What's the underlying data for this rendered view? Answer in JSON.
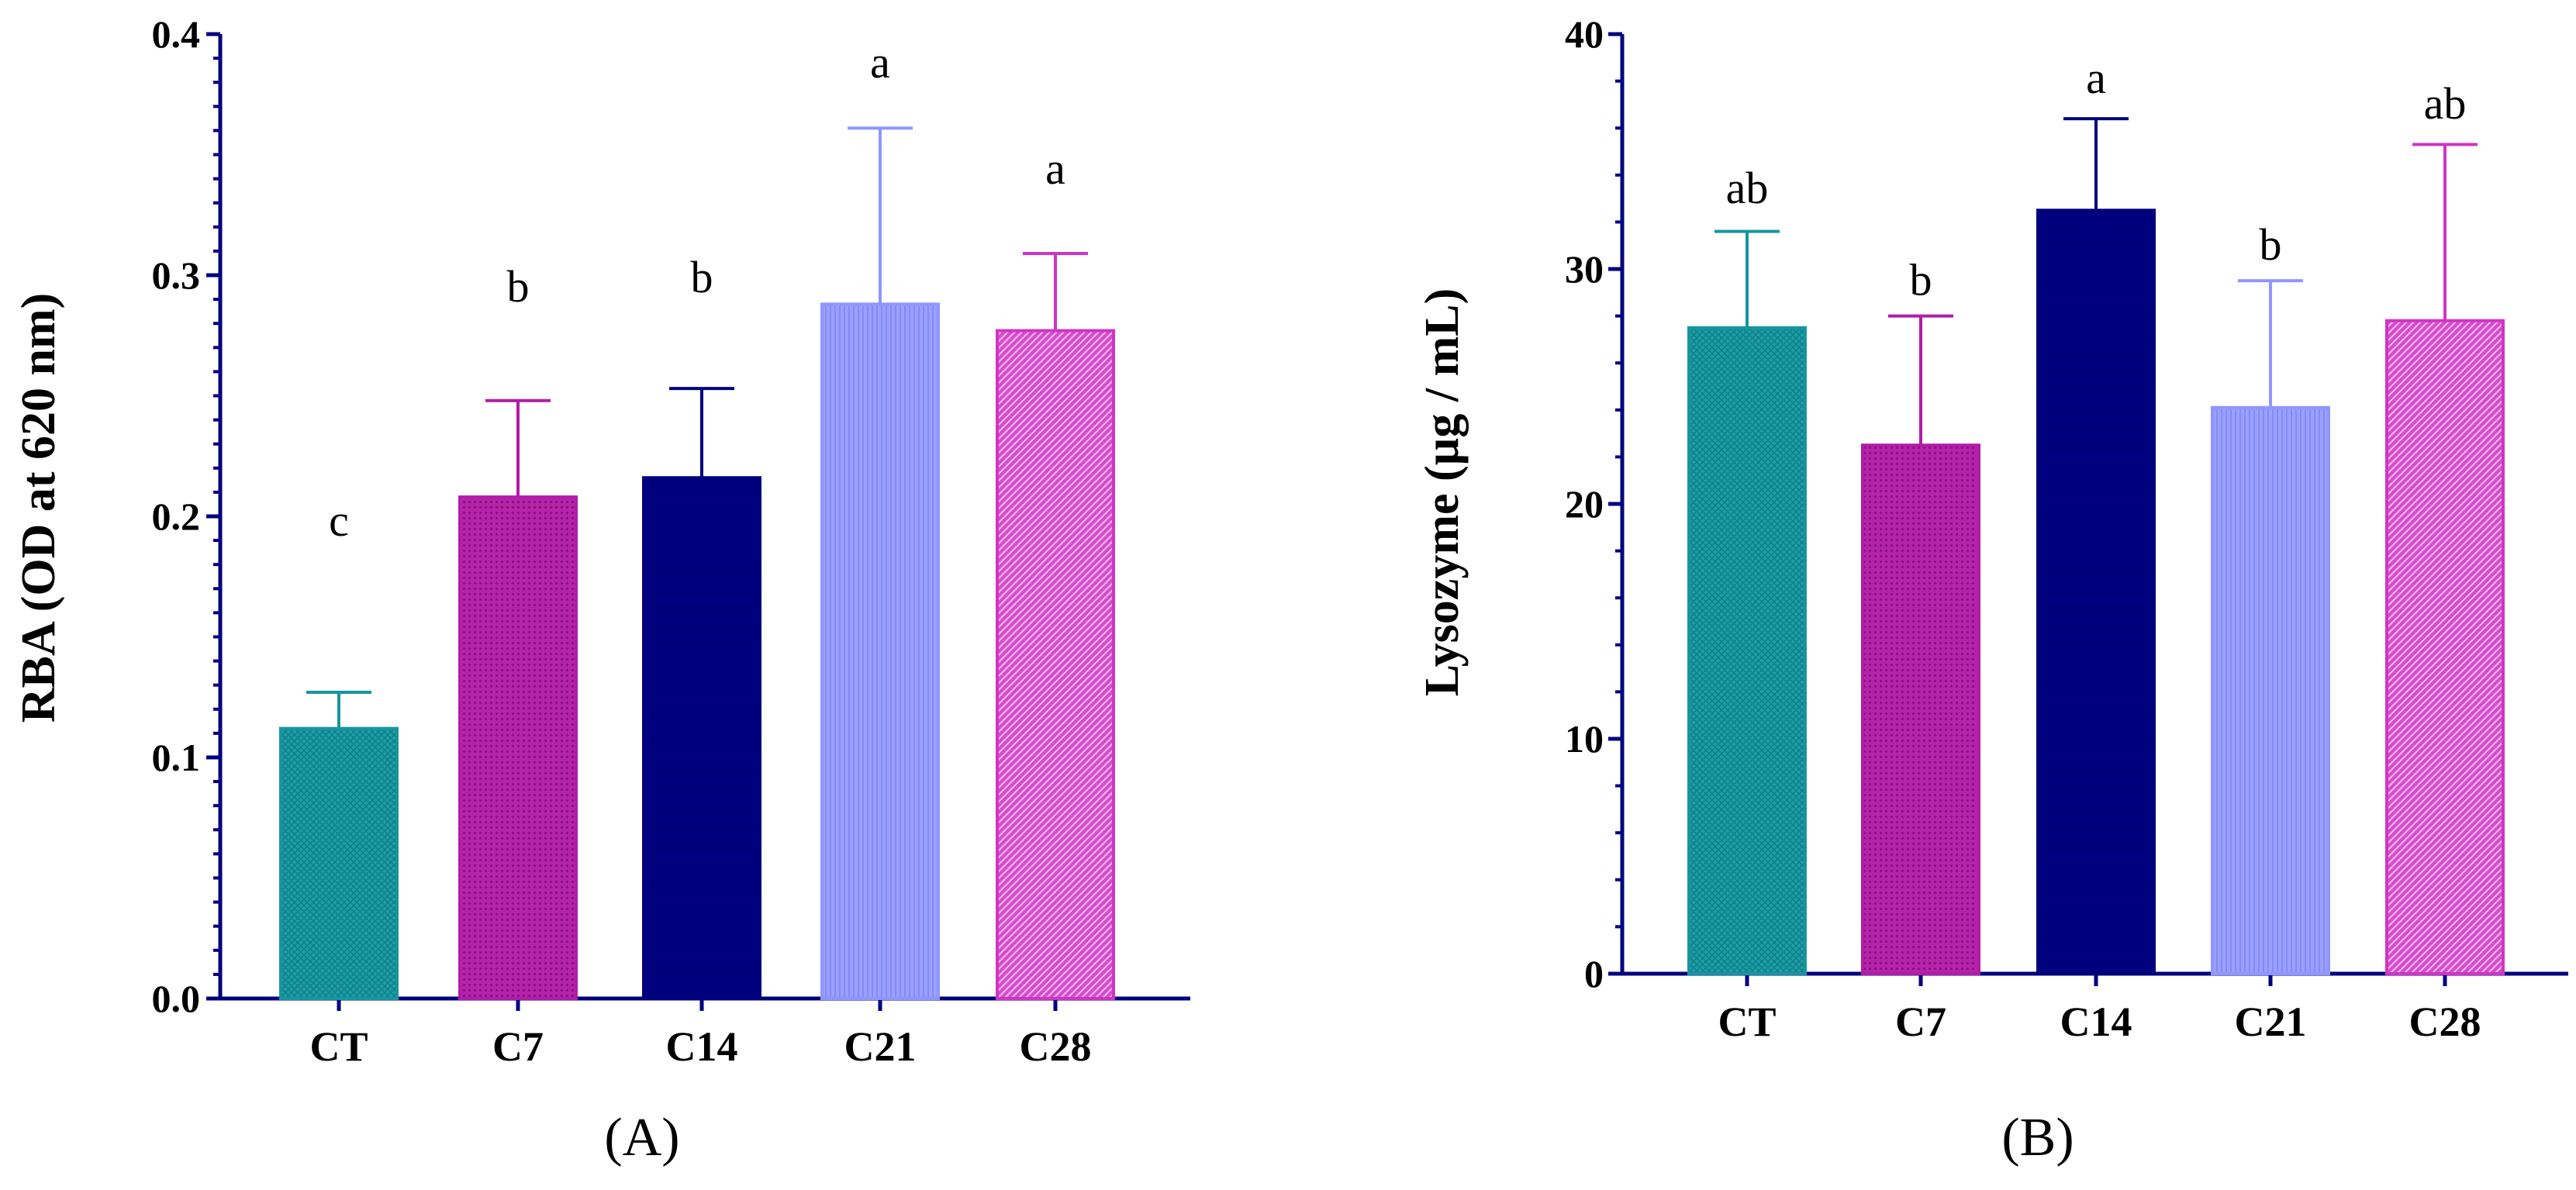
{
  "chart_data": [
    {
      "type": "bar",
      "panel_label": "(A)",
      "ylabel": "RBA (OD at 620 nm)",
      "xlabel": "",
      "ylim": [
        0,
        0.4
      ],
      "y_ticks": [
        "0.0",
        "0.1",
        "0.2",
        "0.3",
        "0.4"
      ],
      "categories": [
        "CT",
        "C7",
        "C14",
        "C21",
        "C28"
      ],
      "values": [
        0.112,
        0.208,
        0.216,
        0.288,
        0.277
      ],
      "errors": [
        0.015,
        0.04,
        0.037,
        0.073,
        0.032
      ],
      "significance_letters": [
        "c",
        "b",
        "b",
        "a",
        "a"
      ],
      "letter_y": [
        0.192,
        0.289,
        0.293,
        0.382,
        0.338
      ],
      "colors": [
        "#17959F",
        "#B11CA6",
        "#00007E",
        "#8F96FF",
        "#D134C4"
      ],
      "patterns": [
        "crosshatch",
        "dots",
        "solid",
        "vertical",
        "diagonal"
      ]
    },
    {
      "type": "bar",
      "panel_label": "(B)",
      "ylabel": "Lysozyme (µg / mL)",
      "xlabel": "",
      "ylim": [
        0,
        40
      ],
      "y_ticks": [
        "0",
        "10",
        "20",
        "30",
        "40"
      ],
      "categories": [
        "CT",
        "C7",
        "C14",
        "C21",
        "C28"
      ],
      "values": [
        27.5,
        22.5,
        32.5,
        24.1,
        27.8
      ],
      "errors": [
        4.1,
        5.5,
        3.9,
        5.4,
        7.5
      ],
      "significance_letters": [
        "ab",
        "b",
        "a",
        "b",
        "ab"
      ],
      "letter_y": [
        32.8,
        28.9,
        37.5,
        30.4,
        36.4
      ],
      "colors": [
        "#17959F",
        "#B11CA6",
        "#00007E",
        "#8F96FF",
        "#D134C4"
      ],
      "patterns": [
        "crosshatch",
        "dots",
        "solid",
        "vertical",
        "diagonal"
      ]
    }
  ]
}
